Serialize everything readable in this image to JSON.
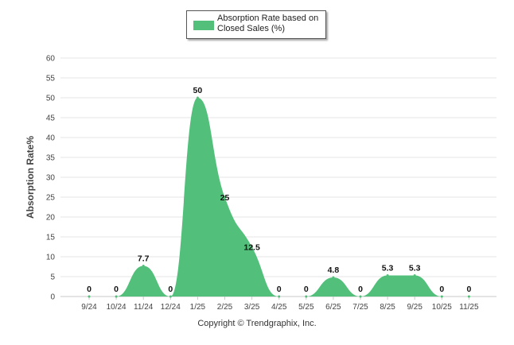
{
  "chart_data": {
    "type": "area",
    "legend": {
      "label": "Absorption Rate based on Closed Sales (%)",
      "placement": "top-center"
    },
    "ylabel": "Absorption Rate%",
    "xlabel": "",
    "categories": [
      "9/24",
      "10/24",
      "11/24",
      "12/24",
      "1/25",
      "2/25",
      "3/25",
      "4/25",
      "5/25",
      "6/25",
      "7/25",
      "8/25",
      "9/25",
      "10/25",
      "11/25"
    ],
    "series": [
      {
        "name": "Absorption Rate based on Closed Sales (%)",
        "values": [
          0,
          0,
          7.7,
          0,
          50,
          25,
          12.5,
          0,
          0,
          4.8,
          0,
          5.3,
          5.3,
          0,
          0
        ],
        "data_labels": [
          "0",
          "0",
          "7.7",
          "0",
          "50",
          "25",
          "12.5",
          "0",
          "0",
          "4.8",
          "0",
          "5.3",
          "5.3",
          "0",
          "0"
        ],
        "color": "#52c07a"
      }
    ],
    "ylim": [
      0,
      60
    ],
    "yticks": [
      0,
      5,
      10,
      15,
      20,
      25,
      30,
      35,
      40,
      45,
      50,
      55,
      60
    ],
    "grid": true,
    "footer": "Copyright © Trendgraphix, Inc."
  }
}
